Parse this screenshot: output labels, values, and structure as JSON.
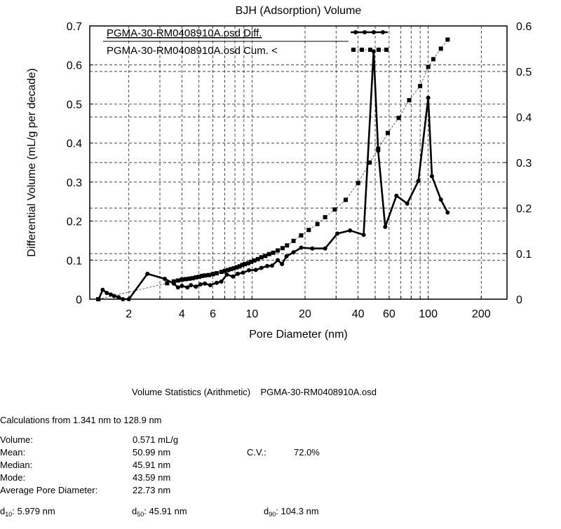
{
  "chart_data": {
    "type": "line",
    "title": "BJH (Adsorption) Volume",
    "xlabel": "Pore Diameter (nm)",
    "ylabel": "Differential Volume (mL/g per decade)",
    "x_scale": "log",
    "xlim": [
      1.2,
      280
    ],
    "ylim": [
      0,
      0.7
    ],
    "y2lim": [
      0,
      0.6
    ],
    "grid": true,
    "legend_position": "top",
    "x_tick_labels": [
      "2",
      "4",
      "6",
      "10",
      "20",
      "40",
      "60",
      "100",
      "200"
    ],
    "x_tick_values": [
      2,
      4,
      6,
      10,
      20,
      40,
      60,
      100,
      200
    ],
    "y_tick_labels": [
      "0",
      "0.1",
      "0.2",
      "0.3",
      "0.4",
      "0.5",
      "0.6",
      "0.7"
    ],
    "y_tick_values": [
      0,
      0.1,
      0.2,
      0.3,
      0.4,
      0.5,
      0.6,
      0.7
    ],
    "y2_tick_labels": [
      "0",
      "0.1",
      "0.2",
      "0.3",
      "0.4",
      "0.5",
      "0.6"
    ],
    "y2_tick_values": [
      0,
      0.1,
      0.2,
      0.3,
      0.4,
      0.5,
      0.6
    ],
    "series": [
      {
        "name": "PGMA-30-RM0408910A.osd Diff.",
        "axis": "left",
        "color": "#000000",
        "marker": "circle",
        "x": [
          1.35,
          1.42,
          1.5,
          1.58,
          1.65,
          1.75,
          1.85,
          2.0,
          2.55,
          3.2,
          3.6,
          3.8,
          4.0,
          4.3,
          4.5,
          4.8,
          5.1,
          5.4,
          5.8,
          6.3,
          6.7,
          7.2,
          7.8,
          8.3,
          8.9,
          9.6,
          10.5,
          11.3,
          12.2,
          13.0,
          14.0,
          14.8,
          15.7,
          17.2,
          19.0,
          22.0,
          26.0,
          30.5,
          36.0,
          43.0,
          49.0,
          52.0,
          57.0,
          66.0,
          76.0,
          88.0,
          100.0,
          105.0,
          118.0,
          128.9
        ],
        "y": [
          0.0,
          0.024,
          0.016,
          0.012,
          0.008,
          0.005,
          0.0,
          0.0,
          0.065,
          0.052,
          0.04,
          0.03,
          0.034,
          0.03,
          0.036,
          0.032,
          0.038,
          0.04,
          0.036,
          0.042,
          0.045,
          0.063,
          0.058,
          0.065,
          0.068,
          0.074,
          0.075,
          0.08,
          0.085,
          0.086,
          0.1,
          0.09,
          0.11,
          0.12,
          0.132,
          0.13,
          0.13,
          0.168,
          0.176,
          0.165,
          0.635,
          0.38,
          0.185,
          0.265,
          0.245,
          0.303,
          0.516,
          0.315,
          0.255,
          0.222
        ]
      },
      {
        "name": "PGMA-30-RM0408910A.osd Cum. <",
        "axis": "right",
        "color": "#000000",
        "marker": "square",
        "x": [
          1.341,
          3.3,
          3.6,
          3.8,
          4.0,
          4.2,
          4.4,
          4.6,
          4.8,
          5.0,
          5.2,
          5.4,
          5.7,
          6.0,
          6.3,
          6.7,
          7.0,
          7.3,
          7.6,
          7.9,
          8.2,
          8.5,
          8.8,
          9.1,
          9.5,
          9.9,
          10.3,
          10.8,
          11.3,
          11.9,
          12.5,
          13.2,
          14.0,
          14.9,
          15.8,
          17.2,
          19.0,
          21.0,
          23.5,
          26.0,
          29.5,
          34.0,
          40.0,
          46.5,
          52.0,
          59.0,
          68.0,
          78.0,
          90.0,
          100.0,
          107.0,
          118.0,
          128.9
        ],
        "y": [
          0.0,
          0.035,
          0.039,
          0.041,
          0.043,
          0.044,
          0.045,
          0.046,
          0.048,
          0.049,
          0.051,
          0.052,
          0.053,
          0.055,
          0.057,
          0.06,
          0.062,
          0.064,
          0.066,
          0.068,
          0.07,
          0.072,
          0.075,
          0.077,
          0.079,
          0.082,
          0.085,
          0.088,
          0.092,
          0.095,
          0.099,
          0.102,
          0.107,
          0.112,
          0.118,
          0.128,
          0.14,
          0.152,
          0.165,
          0.18,
          0.197,
          0.218,
          0.255,
          0.3,
          0.33,
          0.365,
          0.398,
          0.437,
          0.468,
          0.51,
          0.527,
          0.55,
          0.57
        ]
      }
    ]
  },
  "stats": {
    "heading_prefix": "Volume Statistics (Arithmetic)",
    "heading_file": "PGMA-30-RM0408910A.osd",
    "calculations": "Calculations from 1.341 nm to 128.9 nm",
    "volume_label": "Volume:",
    "volume_value": "0.571 mL/g",
    "mean_label": "Mean:",
    "mean_value": "50.99 nm",
    "cv_label": "C.V.:",
    "cv_value": "72.0%",
    "median_label": "Median:",
    "median_value": "45.91 nm",
    "mode_label": "Mode:",
    "mode_value": "43.59 nm",
    "apd_label": "Average Pore Diameter:",
    "apd_value": "22.73 nm",
    "d10_prefix": "d",
    "d10_sub": "10",
    "d10_value": ":  5.979 nm",
    "d50_prefix": "d",
    "d50_sub": "50",
    "d50_value": ":  45.91 nm",
    "d90_prefix": "d",
    "d90_sub": "90",
    "d90_value": ":  104.3 nm"
  }
}
